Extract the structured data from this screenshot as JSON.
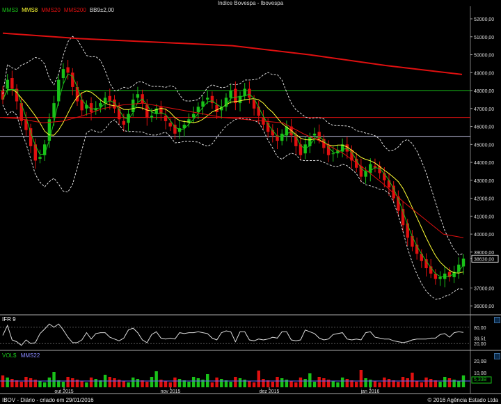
{
  "title": "Indice Bovespa - Ibovespa",
  "legend": [
    {
      "label": "MMS3",
      "color": "#19c219"
    },
    {
      "label": "MMS8",
      "color": "#ffff33"
    },
    {
      "label": "MMS20",
      "color": "#e01010"
    },
    {
      "label": "MMS200",
      "color": "#e01010"
    },
    {
      "label": "BB9±2,00",
      "color": "#dddddd"
    }
  ],
  "price_axis": [
    "52000,00",
    "51000,00",
    "50000,00",
    "49000,00",
    "48000,00",
    "47000,00",
    "46000,00",
    "45000,00",
    "44000,00",
    "43000,00",
    "42000,00",
    "41000,00",
    "40000,00",
    "39000,00",
    "38630,00",
    "37000,00",
    "36000,00"
  ],
  "last_price": "38630,00",
  "ifr": {
    "label": "IFR 9",
    "axis": [
      "80,00",
      "39,51",
      "20,00"
    ],
    "last": "39,51"
  },
  "volume": {
    "label1": "VOL$",
    "label2": "MMS22",
    "axis": [
      "20,0B",
      "10,0B",
      "5,33B"
    ],
    "last": "5,33B"
  },
  "x_labels": [
    "out 2015",
    "nov 2015",
    "dez 2015",
    "jan 2016"
  ],
  "footer_left": "IBOV - Diário - criado em 29/01/2016",
  "footer_right": "© 2016 Agência Estado Ltda",
  "chart_data": {
    "type": "candlestick",
    "ylim": [
      35500,
      52700
    ],
    "support_lines": [
      {
        "value": 48000,
        "color": "#19c219"
      },
      {
        "value": 46500,
        "color": "#e01010"
      },
      {
        "value": 45450,
        "color": "#c8c8e8"
      }
    ],
    "mms200": [
      51200,
      50900,
      50700,
      50500,
      50000,
      49400,
      48900
    ],
    "mms20": [
      46500,
      46400,
      46200,
      46300,
      46600,
      47000,
      47200,
      47300,
      47100,
      46900,
      46700,
      46500,
      46400,
      46300,
      46200,
      45600,
      45100,
      44500,
      43700,
      42800,
      41800,
      40900,
      40000,
      39800
    ],
    "closes": [
      47500,
      48600,
      48100,
      47400,
      46300,
      45800,
      44900,
      44100,
      44300,
      45000,
      46400,
      47300,
      48600,
      49200,
      49000,
      48200,
      47400,
      46900,
      47200,
      46800,
      47000,
      47300,
      47600,
      47400,
      47000,
      46400,
      46100,
      46700,
      47500,
      47800,
      47300,
      46500,
      46600,
      47000,
      46700,
      46300,
      46000,
      45600,
      45900,
      46100,
      46400,
      46700,
      47100,
      47400,
      47600,
      47300,
      46800,
      47100,
      47600,
      48000,
      47300,
      47700,
      48100,
      47600,
      47000,
      46600,
      46100,
      45700,
      45500,
      45200,
      45600,
      46000,
      45500,
      44900,
      44400,
      45000,
      45400,
      45600,
      45300,
      44800,
      44400,
      44500,
      44700,
      45000,
      44600,
      44100,
      43700,
      43200,
      43500,
      43900,
      43700,
      43400,
      43000,
      42600,
      42000,
      41300,
      40500,
      39800,
      39300,
      38900,
      38500,
      38100,
      37800,
      37500,
      37600,
      37800,
      37600,
      37900,
      38300,
      38630
    ],
    "opens": [
      48000,
      48100,
      48700,
      48100,
      47300,
      46400,
      45900,
      45000,
      44200,
      44400,
      45200,
      46500,
      47400,
      48700,
      49300,
      49000,
      48200,
      47500,
      47000,
      47300,
      46900,
      47100,
      47300,
      47700,
      47500,
      47000,
      46300,
      46200,
      46800,
      47600,
      47800,
      47200,
      46500,
      46700,
      47100,
      46600,
      46200,
      46100,
      45700,
      45900,
      46200,
      46500,
      46800,
      47100,
      47500,
      47700,
      47200,
      46900,
      47100,
      47600,
      48100,
      47300,
      47700,
      48100,
      47500,
      47100,
      46500,
      46200,
      45800,
      45500,
      45200,
      45500,
      46000,
      45500,
      45000,
      44500,
      44900,
      45500,
      45700,
      45300,
      44900,
      44500,
      44500,
      44600,
      45000,
      44700,
      44200,
      43800,
      43200,
      43400,
      43800,
      43800,
      43400,
      43000,
      42700,
      42100,
      41400,
      40600,
      39900,
      39400,
      38900,
      38600,
      38200,
      37800,
      37500,
      37500,
      37900,
      37600,
      37900,
      38200
    ]
  }
}
